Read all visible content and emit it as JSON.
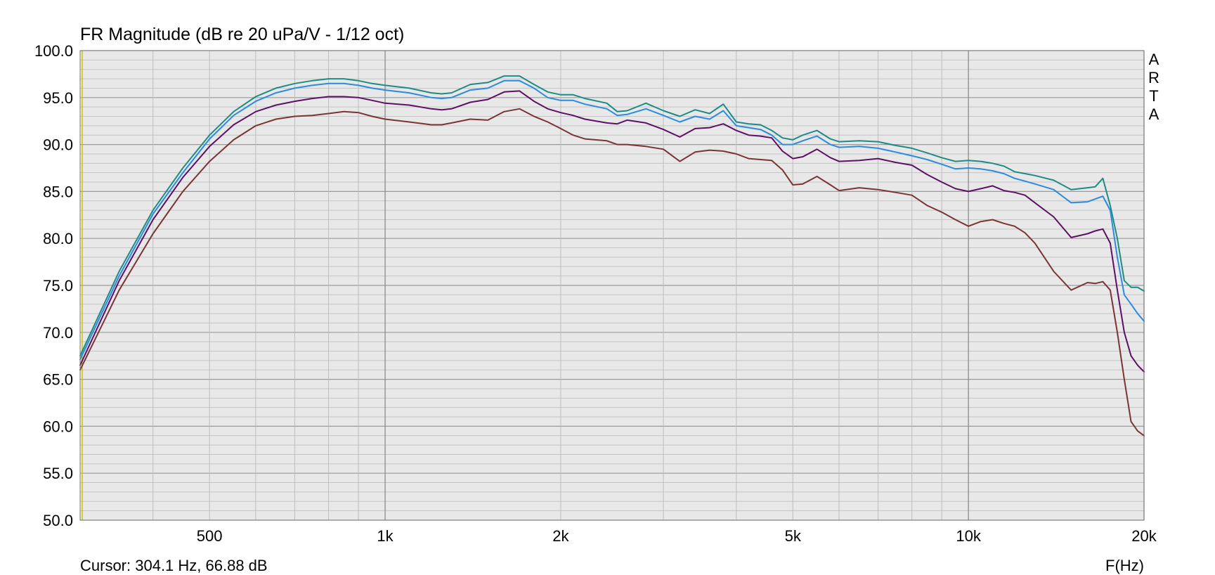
{
  "chart_data": {
    "type": "line",
    "title": "FR Magnitude (dB re 20 uPa/V - 1/12 oct)",
    "xlabel": "F(Hz)",
    "ylabel": "",
    "xscale": "log",
    "xlim": [
      300,
      20000
    ],
    "ylim": [
      50,
      100
    ],
    "grid": true,
    "x_ticks": [
      {
        "value": 500,
        "label": "500"
      },
      {
        "value": 1000,
        "label": "1k"
      },
      {
        "value": 2000,
        "label": "2k"
      },
      {
        "value": 5000,
        "label": "5k"
      },
      {
        "value": 10000,
        "label": "10k"
      },
      {
        "value": 20000,
        "label": "20k"
      }
    ],
    "y_ticks": [
      "100.0",
      "95.0",
      "90.0",
      "85.0",
      "80.0",
      "75.0",
      "70.0",
      "65.0",
      "60.0",
      "55.0",
      "50.0"
    ],
    "watermark": [
      "A",
      "R",
      "T",
      "A"
    ],
    "cursor_readout": "Cursor: 304.1 Hz, 66.88 dB",
    "cursor_line_color": "#c8c800",
    "series": [
      {
        "color": "#1e8c82",
        "x": [
          300,
          350,
          400,
          450,
          500,
          550,
          600,
          650,
          700,
          750,
          800,
          850,
          900,
          950,
          1000,
          1100,
          1200,
          1250,
          1300,
          1400,
          1500,
          1600,
          1700,
          1800,
          1900,
          2000,
          2100,
          2200,
          2400,
          2500,
          2600,
          2800,
          3000,
          3200,
          3400,
          3600,
          3800,
          4000,
          4200,
          4400,
          4600,
          4800,
          5000,
          5200,
          5500,
          5800,
          6000,
          6500,
          7000,
          7500,
          8000,
          8500,
          9000,
          9500,
          10000,
          10500,
          11000,
          11500,
          12000,
          12500,
          13000,
          14000,
          15000,
          16000,
          16500,
          17000,
          17500,
          18000,
          18500,
          19000,
          19500,
          20000
        ],
        "y": [
          67.5,
          76.5,
          83,
          87.5,
          91,
          93.5,
          95.1,
          96,
          96.5,
          96.8,
          97,
          97,
          96.8,
          96.5,
          96.3,
          96,
          95.5,
          95.4,
          95.5,
          96.4,
          96.6,
          97.3,
          97.3,
          96.4,
          95.6,
          95.3,
          95.3,
          94.9,
          94.4,
          93.5,
          93.6,
          94.4,
          93.6,
          93,
          93.7,
          93.3,
          94.3,
          92.4,
          92.2,
          92.1,
          91.5,
          90.7,
          90.5,
          91,
          91.5,
          90.6,
          90.3,
          90.4,
          90.3,
          89.9,
          89.6,
          89.1,
          88.6,
          88.2,
          88.3,
          88.2,
          88,
          87.7,
          87.1,
          86.9,
          86.7,
          86.2,
          85.2,
          85.4,
          85.5,
          86.4,
          83.5,
          80,
          75.5,
          74.8,
          74.8,
          74.4
        ]
      },
      {
        "color": "#2a8be0",
        "x": [
          300,
          350,
          400,
          450,
          500,
          550,
          600,
          650,
          700,
          750,
          800,
          850,
          900,
          950,
          1000,
          1100,
          1200,
          1250,
          1300,
          1400,
          1500,
          1600,
          1700,
          1800,
          1900,
          2000,
          2100,
          2200,
          2400,
          2500,
          2600,
          2800,
          3000,
          3200,
          3400,
          3600,
          3800,
          4000,
          4200,
          4400,
          4600,
          4800,
          5000,
          5200,
          5500,
          5800,
          6000,
          6500,
          7000,
          7500,
          8000,
          8500,
          9000,
          9500,
          10000,
          10500,
          11000,
          11500,
          12000,
          12500,
          13000,
          14000,
          15000,
          16000,
          16500,
          17000,
          17500,
          18000,
          18500,
          19000,
          19500,
          20000
        ],
        "y": [
          67.1,
          76,
          82.6,
          87,
          90.6,
          93.1,
          94.6,
          95.5,
          96,
          96.3,
          96.5,
          96.5,
          96.3,
          96,
          95.8,
          95.5,
          95,
          94.9,
          95,
          95.8,
          96,
          96.8,
          96.8,
          96,
          95,
          94.7,
          94.7,
          94.3,
          93.8,
          93.1,
          93.2,
          93.8,
          93.1,
          92.4,
          93,
          92.7,
          93.6,
          92,
          91.8,
          91.6,
          91,
          90,
          90,
          90.4,
          90.9,
          90,
          89.7,
          89.8,
          89.6,
          89.2,
          88.8,
          88.4,
          87.9,
          87.4,
          87.5,
          87.4,
          87.2,
          86.9,
          86.4,
          86.1,
          85.8,
          85.2,
          83.8,
          83.9,
          84.2,
          84.5,
          83,
          78,
          74,
          73,
          72,
          71.2
        ]
      },
      {
        "color": "#5e1065",
        "x": [
          300,
          350,
          400,
          450,
          500,
          550,
          600,
          650,
          700,
          750,
          800,
          850,
          900,
          950,
          1000,
          1100,
          1200,
          1250,
          1300,
          1400,
          1500,
          1600,
          1700,
          1800,
          1900,
          2000,
          2100,
          2200,
          2400,
          2500,
          2600,
          2800,
          3000,
          3200,
          3400,
          3600,
          3800,
          4000,
          4200,
          4400,
          4600,
          4800,
          5000,
          5200,
          5500,
          5800,
          6000,
          6500,
          7000,
          7500,
          8000,
          8500,
          9000,
          9500,
          10000,
          10500,
          11000,
          11500,
          12000,
          12500,
          13000,
          14000,
          15000,
          16000,
          16500,
          17000,
          17500,
          18000,
          18500,
          19000,
          19500,
          20000
        ],
        "y": [
          66.5,
          75.5,
          82,
          86.5,
          89.8,
          92.1,
          93.5,
          94.2,
          94.6,
          94.9,
          95.1,
          95.1,
          95,
          94.7,
          94.4,
          94.2,
          93.8,
          93.7,
          93.8,
          94.5,
          94.8,
          95.6,
          95.7,
          94.6,
          93.8,
          93.4,
          93.1,
          92.7,
          92.3,
          92.2,
          92.6,
          92.3,
          91.6,
          90.8,
          91.7,
          91.8,
          92.2,
          91.5,
          91,
          90.9,
          90.7,
          89.3,
          88.5,
          88.7,
          89.5,
          88.6,
          88.2,
          88.3,
          88.5,
          88.1,
          87.8,
          86.8,
          86,
          85.3,
          85,
          85.3,
          85.6,
          85.1,
          84.9,
          84.6,
          83.8,
          82.3,
          80.1,
          80.5,
          80.8,
          81,
          79.5,
          74.5,
          70,
          67.5,
          66.5,
          65.8
        ]
      },
      {
        "color": "#7b3434",
        "x": [
          300,
          350,
          400,
          450,
          500,
          550,
          600,
          650,
          700,
          750,
          800,
          850,
          900,
          950,
          1000,
          1100,
          1200,
          1250,
          1300,
          1400,
          1500,
          1600,
          1700,
          1800,
          1900,
          2000,
          2100,
          2200,
          2400,
          2500,
          2600,
          2800,
          3000,
          3200,
          3400,
          3600,
          3800,
          4000,
          4200,
          4400,
          4600,
          4800,
          5000,
          5200,
          5500,
          5800,
          6000,
          6500,
          7000,
          7500,
          8000,
          8500,
          9000,
          9500,
          10000,
          10500,
          11000,
          11500,
          12000,
          12500,
          13000,
          14000,
          15000,
          16000,
          16500,
          17000,
          17500,
          18000,
          18500,
          19000,
          19500,
          20000
        ],
        "y": [
          66,
          74.5,
          80.5,
          85,
          88.2,
          90.5,
          92,
          92.7,
          93,
          93.1,
          93.3,
          93.5,
          93.4,
          93,
          92.7,
          92.4,
          92.1,
          92.1,
          92.3,
          92.7,
          92.6,
          93.5,
          93.8,
          93,
          92.4,
          91.7,
          91,
          90.6,
          90.4,
          90,
          90,
          89.8,
          89.5,
          88.2,
          89.2,
          89.4,
          89.3,
          89,
          88.5,
          88.4,
          88.3,
          87.3,
          85.7,
          85.8,
          86.6,
          85.7,
          85.1,
          85.4,
          85.2,
          84.9,
          84.6,
          83.5,
          82.8,
          82,
          81.3,
          81.8,
          82,
          81.6,
          81.3,
          80.6,
          79.5,
          76.5,
          74.5,
          75.3,
          75.2,
          75.4,
          74.5,
          70,
          65,
          60.5,
          59.5,
          59
        ]
      }
    ]
  }
}
